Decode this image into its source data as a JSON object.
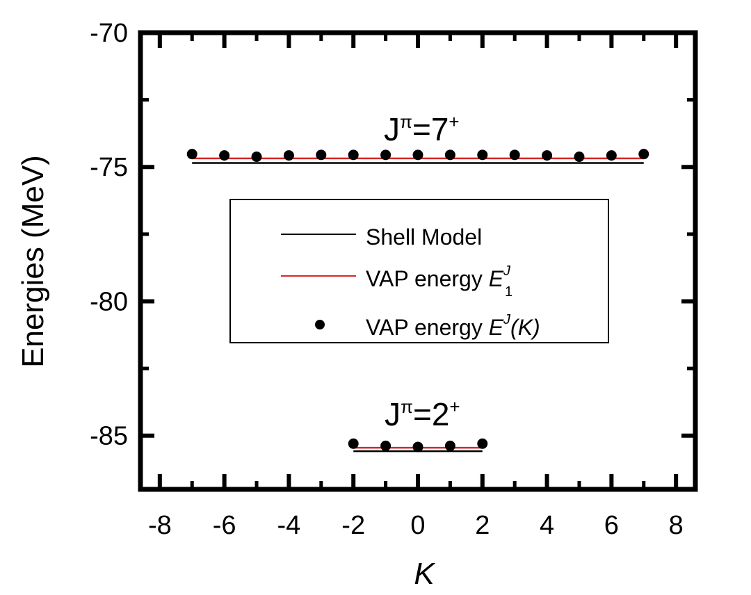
{
  "chart_data": {
    "type": "scatter",
    "xlabel": "K",
    "ylabel": "Energies (MeV)",
    "xlim": [
      -8.6,
      8.6
    ],
    "ylim": [
      -87,
      -70
    ],
    "xticks": [
      -8,
      -6,
      -4,
      -2,
      0,
      2,
      4,
      6,
      8
    ],
    "xtick_labels": [
      "-8",
      "-6",
      "-4",
      "-2",
      "0",
      "2",
      "4",
      "6",
      "8"
    ],
    "yticks": [
      -70,
      -75,
      -80,
      -85
    ],
    "ytick_labels": [
      "-70",
      "-75",
      "-80",
      "-85"
    ],
    "legend": {
      "position": "center",
      "entries": [
        {
          "label": "Shell Model",
          "marker": "line",
          "color": "#000000"
        },
        {
          "label_prefix": "VAP energy ",
          "math": "E",
          "sup": "J",
          "sub": "1",
          "marker": "line",
          "color": "#d62728"
        },
        {
          "label_prefix": "VAP energy ",
          "math": "E",
          "sup": "J",
          "paren": "(K)",
          "marker": "dot",
          "color": "#000000"
        }
      ]
    },
    "annotations": [
      {
        "text": "J",
        "sup": "π",
        "rest": "=7",
        "sup2": "+"
      },
      {
        "text": "J",
        "sup": "π",
        "rest": "=2",
        "sup2": "+"
      }
    ],
    "groups": [
      {
        "K": [
          -7,
          -6,
          -5,
          -4,
          -3,
          -2,
          -1,
          0,
          1,
          2,
          3,
          4,
          5,
          6,
          7
        ],
        "E_K": [
          -74.52,
          -74.57,
          -74.62,
          -74.57,
          -74.55,
          -74.55,
          -74.55,
          -74.55,
          -74.55,
          -74.55,
          -74.55,
          -74.57,
          -74.62,
          -74.57,
          -74.52
        ],
        "shell_model": -74.85,
        "vap_E1": -74.68,
        "K_range": [
          -7,
          7
        ]
      },
      {
        "K": [
          -2,
          -1,
          0,
          1,
          2
        ],
        "E_K": [
          -85.3,
          -85.38,
          -85.42,
          -85.38,
          -85.3
        ],
        "shell_model": -85.58,
        "vap_E1": -85.45,
        "K_range": [
          -2,
          2
        ]
      }
    ],
    "colors": {
      "shell": "#000000",
      "vap_line": "#d62728",
      "dots": "#000000"
    }
  }
}
